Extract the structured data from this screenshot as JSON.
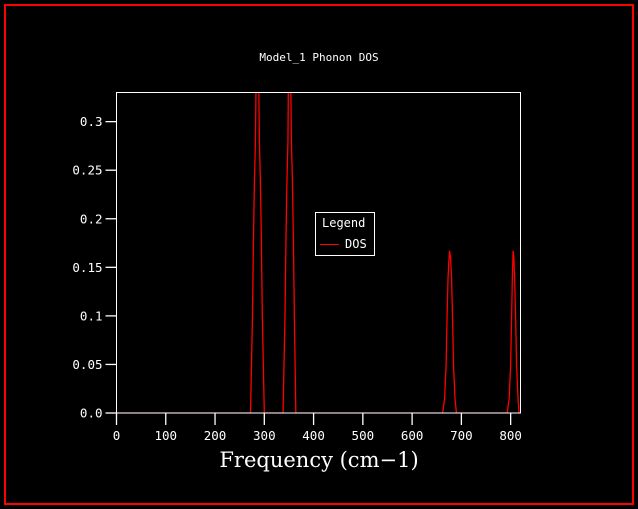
{
  "figure": {
    "background_color": "#000000",
    "border_color": "#ff0000",
    "frame_color": "#ffffff",
    "text_color": "#ffffff"
  },
  "chart": {
    "title": "Model_1 Phonon DOS",
    "xlabel": "Frequency (cm−1)",
    "legend": {
      "title": "Legend",
      "entries": [
        {
          "label": "DOS",
          "color": "#ff0000"
        }
      ]
    }
  },
  "chart_data": {
    "type": "line",
    "title": "Model_1 Phonon DOS",
    "xlabel": "Frequency (cm−1)",
    "ylabel": "",
    "xlim": [
      0,
      820
    ],
    "ylim": [
      0,
      0.33
    ],
    "x_ticks": [
      0,
      100,
      200,
      300,
      400,
      500,
      600,
      700,
      800
    ],
    "x_tick_labels": [
      "0",
      "100",
      "200",
      "300",
      "400",
      "500",
      "600",
      "700",
      "800"
    ],
    "y_ticks": [
      0,
      0.05,
      0.1,
      0.15,
      0.2,
      0.25,
      0.3
    ],
    "y_tick_labels": [
      "0.0",
      "0.05",
      "0.1",
      "0.15",
      "0.2",
      "0.25",
      "0.3"
    ],
    "grid": false,
    "legend_position": "inside-center",
    "series": [
      {
        "name": "DOS",
        "color": "#ff0000",
        "peaks": [
          {
            "center": 286,
            "height": 0.33,
            "clipped": true,
            "base": [
              272,
              300
            ]
          },
          {
            "center": 350,
            "height": 0.33,
            "clipped": true,
            "base": [
              338,
              364
            ]
          },
          {
            "center": 676,
            "height": 0.167,
            "clipped": false,
            "base": [
              662,
              690
            ]
          },
          {
            "center": 805,
            "height": 0.167,
            "clipped": false,
            "base": [
              793,
              817
            ]
          }
        ],
        "points": [
          [
            0,
            0
          ],
          [
            266,
            0
          ],
          [
            272,
            0
          ],
          [
            276,
            0.1
          ],
          [
            278,
            0.18
          ],
          [
            280,
            0.24
          ],
          [
            282,
            0.28
          ],
          [
            285,
            0.42
          ],
          [
            286,
            0.43
          ],
          [
            287,
            0.42
          ],
          [
            290,
            0.28
          ],
          [
            292,
            0.24
          ],
          [
            294,
            0.18
          ],
          [
            296,
            0.1
          ],
          [
            300,
            0
          ],
          [
            338,
            0
          ],
          [
            342,
            0.1
          ],
          [
            344,
            0.18
          ],
          [
            346,
            0.24
          ],
          [
            348,
            0.28
          ],
          [
            350,
            0.42
          ],
          [
            351,
            0.43
          ],
          [
            352,
            0.42
          ],
          [
            355,
            0.28
          ],
          [
            357,
            0.24
          ],
          [
            359,
            0.18
          ],
          [
            361,
            0.1
          ],
          [
            364,
            0
          ],
          [
            662,
            0
          ],
          [
            666,
            0.015
          ],
          [
            669,
            0.05
          ],
          [
            671,
            0.1
          ],
          [
            673,
            0.14
          ],
          [
            675,
            0.16
          ],
          [
            676,
            0.167
          ],
          [
            678,
            0.16
          ],
          [
            680,
            0.14
          ],
          [
            682,
            0.1
          ],
          [
            684,
            0.05
          ],
          [
            687,
            0.015
          ],
          [
            690,
            0
          ],
          [
            793,
            0
          ],
          [
            797,
            0.015
          ],
          [
            800,
            0.05
          ],
          [
            802,
            0.1
          ],
          [
            803.5,
            0.14
          ],
          [
            805,
            0.167
          ],
          [
            806.5,
            0.16
          ],
          [
            808,
            0.14
          ],
          [
            810,
            0.1
          ],
          [
            812,
            0.05
          ],
          [
            815,
            0.015
          ],
          [
            817,
            0
          ],
          [
            820,
            0
          ]
        ]
      }
    ]
  }
}
